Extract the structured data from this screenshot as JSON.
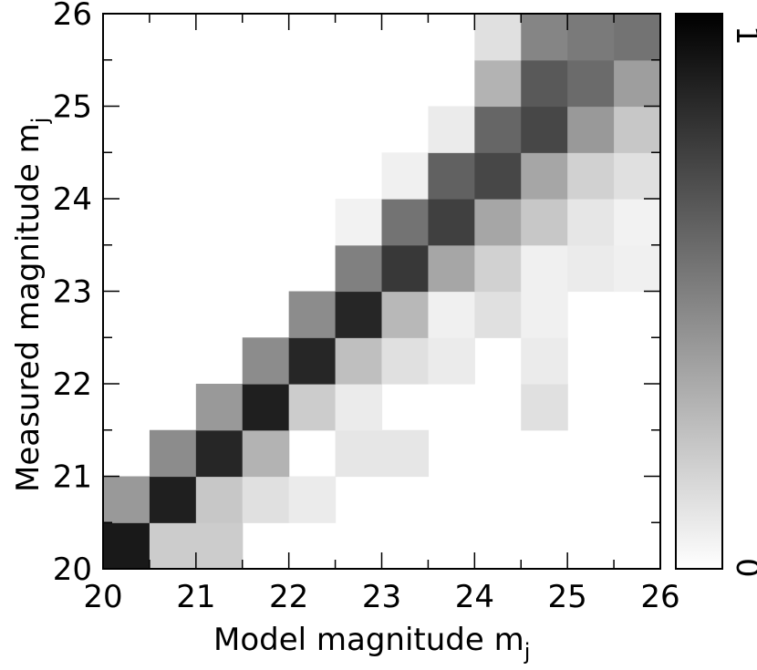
{
  "chart_data": {
    "type": "heatmap",
    "title": "",
    "xlabel": "Model magnitude m",
    "xlabel_sub": "j",
    "ylabel": "Measured magnitude m",
    "ylabel_sub": "j",
    "xlim": [
      20,
      26
    ],
    "ylim": [
      20,
      26
    ],
    "xticks": [
      "20",
      "21",
      "22",
      "23",
      "24",
      "25",
      "26"
    ],
    "yticks": [
      "20",
      "21",
      "22",
      "23",
      "24",
      "25",
      "26"
    ],
    "bin_size": 0.5,
    "x_bins": [
      20.0,
      20.5,
      21.0,
      21.5,
      22.0,
      22.5,
      23.0,
      23.5,
      24.0,
      24.5,
      25.0,
      25.5
    ],
    "y_bins": [
      20.0,
      20.5,
      21.0,
      21.5,
      22.0,
      22.5,
      23.0,
      23.5,
      24.0,
      24.5,
      25.0,
      25.5
    ],
    "values_note_rows_from_y20_upward": "",
    "values": [
      [
        0.9,
        0.2,
        0.2,
        0.0,
        0.0,
        0.0,
        0.0,
        0.0,
        0.0,
        0.0,
        0.0,
        0.0
      ],
      [
        0.4,
        0.88,
        0.22,
        0.12,
        0.08,
        0.0,
        0.0,
        0.0,
        0.0,
        0.0,
        0.0,
        0.0
      ],
      [
        0.0,
        0.45,
        0.85,
        0.3,
        0.0,
        0.1,
        0.1,
        0.0,
        0.0,
        0.0,
        0.0,
        0.0
      ],
      [
        0.0,
        0.0,
        0.4,
        0.88,
        0.2,
        0.08,
        0.0,
        0.0,
        0.0,
        0.12,
        0.0,
        0.0
      ],
      [
        0.0,
        0.0,
        0.0,
        0.45,
        0.85,
        0.25,
        0.12,
        0.08,
        0.0,
        0.08,
        0.0,
        0.0
      ],
      [
        0.0,
        0.0,
        0.0,
        0.0,
        0.45,
        0.85,
        0.28,
        0.06,
        0.12,
        0.06,
        0.0,
        0.0
      ],
      [
        0.0,
        0.0,
        0.0,
        0.0,
        0.0,
        0.5,
        0.78,
        0.35,
        0.18,
        0.06,
        0.08,
        0.06
      ],
      [
        0.0,
        0.0,
        0.0,
        0.0,
        0.0,
        0.05,
        0.55,
        0.75,
        0.35,
        0.22,
        0.1,
        0.05
      ],
      [
        0.0,
        0.0,
        0.0,
        0.0,
        0.0,
        0.0,
        0.06,
        0.62,
        0.72,
        0.35,
        0.18,
        0.12
      ],
      [
        0.0,
        0.0,
        0.0,
        0.0,
        0.0,
        0.0,
        0.0,
        0.08,
        0.6,
        0.72,
        0.4,
        0.22
      ],
      [
        0.0,
        0.0,
        0.0,
        0.0,
        0.0,
        0.0,
        0.0,
        0.0,
        0.3,
        0.65,
        0.58,
        0.38
      ],
      [
        0.0,
        0.0,
        0.0,
        0.0,
        0.0,
        0.0,
        0.0,
        0.0,
        0.12,
        0.48,
        0.52,
        0.55
      ]
    ],
    "colorbar": {
      "min_label": "0",
      "max_label": "1",
      "low_color": "#ffffff",
      "high_color": "#000000"
    },
    "grid": false,
    "legend": "none"
  }
}
